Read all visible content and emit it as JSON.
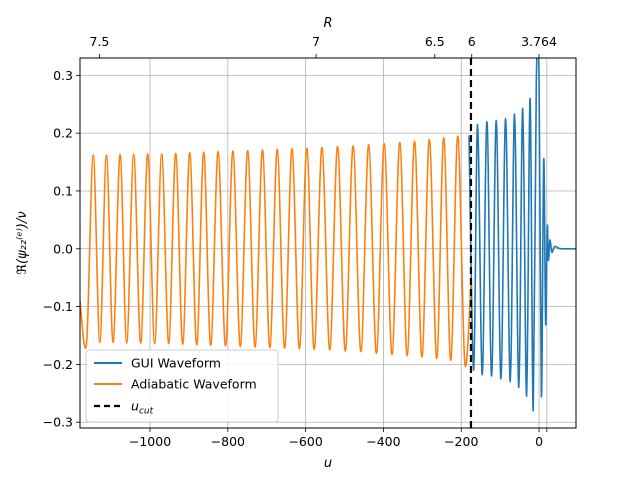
{
  "chart_data": {
    "type": "line",
    "xlabel": "u",
    "ylabel": "ℜ(ψ₂₂⁽ᵉ⁾)/ν",
    "top_axis_label": "R",
    "xlim": [
      -1180,
      95
    ],
    "ylim": [
      -0.31,
      0.33
    ],
    "grid": true,
    "x_ticks": [
      -1000,
      -800,
      -600,
      -400,
      -200,
      0,
      20
    ],
    "x_tick_labels": [
      "−1000",
      "−800",
      "−600",
      "−400",
      "−200",
      "0",
      ""
    ],
    "y_ticks": [
      -0.3,
      -0.2,
      -0.1,
      0.0,
      0.1,
      0.2,
      0.3
    ],
    "y_tick_labels": [
      "−0.3",
      "−0.2",
      "−0.1",
      "0.0",
      "0.1",
      "0.2",
      "0.3"
    ],
    "top_ticks": [
      {
        "u": -1130,
        "label": "7.5"
      },
      {
        "u": -573,
        "label": "7"
      },
      {
        "u": -268,
        "label": "6.5"
      },
      {
        "u": -173,
        "label": "6"
      },
      {
        "u": 0,
        "label": "3.764"
      }
    ],
    "u_cut": -175,
    "legend_position": "lower-left",
    "series": [
      {
        "name": "GUI Waveform",
        "color": "#1f77b4",
        "x": [
          -180,
          -168,
          -158,
          -146,
          -134,
          -122,
          -110,
          -98,
          -86,
          -74,
          -63,
          -52,
          -42,
          -32,
          -23,
          -15,
          -7,
          0,
          6,
          12,
          17,
          21,
          24,
          28,
          33,
          40,
          50,
          60,
          75,
          95
        ],
        "y": [
          0.196,
          -0.21,
          0.215,
          -0.218,
          0.22,
          -0.22,
          0.222,
          -0.225,
          0.225,
          -0.23,
          0.233,
          -0.24,
          0.243,
          -0.255,
          0.26,
          -0.28,
          0.29,
          0.298,
          -0.255,
          0.155,
          -0.13,
          0.038,
          -0.02,
          0.015,
          -0.006,
          0.004,
          0.001,
          0.0,
          0.0,
          0.0
        ]
      },
      {
        "name": "Adiabatic Waveform",
        "color": "#ff7f0e",
        "x": [
          -1180,
          -1163,
          -1146,
          -1129,
          -1112,
          -1095,
          -1077,
          -1060,
          -1042,
          -1024,
          -1006,
          -988,
          -970,
          -952,
          -934,
          -916,
          -898,
          -880,
          -862,
          -844,
          -825,
          -806,
          -787,
          -768,
          -749,
          -730,
          -711,
          -692,
          -673,
          -654,
          -635,
          -616,
          -597,
          -578,
          -558,
          -538,
          -518,
          -498,
          -478,
          -458,
          -438,
          -418,
          -398,
          -378,
          -358,
          -339,
          -320,
          -301,
          -282,
          -263,
          -245,
          -227,
          -209,
          -191,
          -175
        ],
        "y": [
          -0.09,
          -0.162,
          0.162,
          -0.162,
          0.162,
          -0.162,
          0.163,
          -0.163,
          0.163,
          -0.163,
          0.164,
          -0.164,
          0.164,
          -0.164,
          0.165,
          -0.165,
          0.166,
          -0.166,
          0.167,
          -0.167,
          0.168,
          -0.168,
          0.169,
          -0.169,
          0.17,
          -0.17,
          0.171,
          -0.171,
          0.172,
          -0.172,
          0.173,
          -0.173,
          0.174,
          -0.174,
          0.175,
          -0.175,
          0.177,
          -0.177,
          0.178,
          -0.178,
          0.18,
          -0.181,
          0.182,
          -0.183,
          0.184,
          -0.185,
          0.186,
          -0.187,
          0.189,
          -0.19,
          0.192,
          -0.193,
          0.195,
          -0.196,
          -0.06
        ]
      }
    ],
    "legend": [
      {
        "label": "GUI Waveform",
        "color": "#1f77b4",
        "style": "solid"
      },
      {
        "label": "Adiabatic Waveform",
        "color": "#ff7f0e",
        "style": "solid"
      },
      {
        "label": "u_cut",
        "color": "#000000",
        "style": "dashed"
      }
    ]
  }
}
